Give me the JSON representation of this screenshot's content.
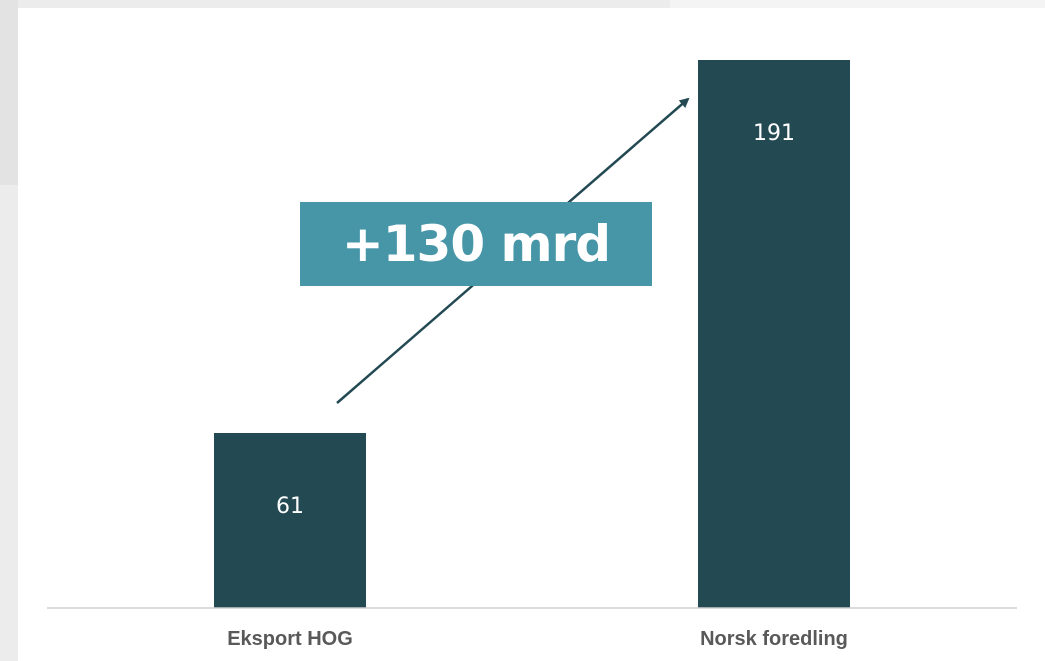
{
  "chart_data": {
    "type": "bar",
    "categories": [
      "Eksport HOG",
      "Norsk foredling"
    ],
    "values": [
      61,
      191
    ],
    "data_labels": [
      "61",
      "191"
    ],
    "title": "",
    "xlabel": "",
    "ylabel": "",
    "ylim": [
      0,
      191
    ],
    "grid": false,
    "legend": "none",
    "annotation": {
      "text": "+130 mrd",
      "from_category": "Eksport HOG",
      "to_category": "Norsk foredling",
      "arrow": true
    },
    "colors": {
      "bar": "#234a53",
      "annotation_box": "#4796a8",
      "axis_line": "#cfcfcf",
      "category_label": "#595959",
      "data_label": "#ffffff"
    }
  }
}
